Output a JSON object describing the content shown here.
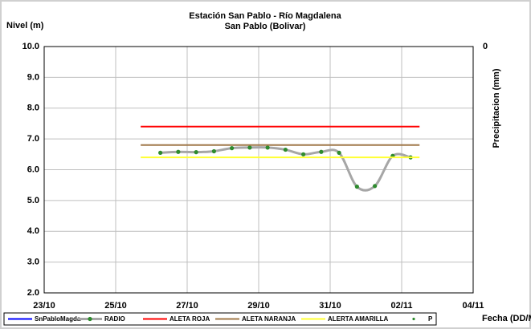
{
  "chart_data": {
    "type": "line",
    "title": "Estación San Pablo - Río Magdalena",
    "subtitle": "San Pablo (Bolivar)",
    "y_label": "Nivel (m)",
    "y2_label": "Precipitacion (mm)",
    "x_label": "Fecha (DD/MM)",
    "xlim": [
      0,
      12
    ],
    "xticks": [
      {
        "value": 0,
        "label": "23/10"
      },
      {
        "value": 2,
        "label": "25/10"
      },
      {
        "value": 4,
        "label": "27/10"
      },
      {
        "value": 6,
        "label": "29/10"
      },
      {
        "value": 8,
        "label": "31/10"
      },
      {
        "value": 10,
        "label": "02/11"
      },
      {
        "value": 12,
        "label": "04/11"
      }
    ],
    "ylim": [
      2,
      10
    ],
    "yticks": [
      {
        "value": 2,
        "label": "2.0"
      },
      {
        "value": 3,
        "label": "3.0"
      },
      {
        "value": 4,
        "label": "4.0"
      },
      {
        "value": 5,
        "label": "5.0"
      },
      {
        "value": 6,
        "label": "6.0"
      },
      {
        "value": 7,
        "label": "7.0"
      },
      {
        "value": 8,
        "label": "8.0"
      },
      {
        "value": 9,
        "label": "9.0"
      },
      {
        "value": 10,
        "label": "10.0"
      }
    ],
    "y2ticks": [
      0
    ],
    "grid": true,
    "series": [
      {
        "name": "SnPabloMagda",
        "color": "#0000ff",
        "x": [],
        "values": []
      },
      {
        "name": "RADIO",
        "color": "#a6a6a6",
        "marker_color": "#2e8b2e",
        "smooth": true,
        "x": [
          3.25,
          3.75,
          4.25,
          4.75,
          5.25,
          5.75,
          6.25,
          6.75,
          7.25,
          7.75,
          8.25,
          8.75,
          9.25,
          9.75,
          10.25
        ],
        "values": [
          6.55,
          6.58,
          6.57,
          6.6,
          6.7,
          6.72,
          6.72,
          6.65,
          6.5,
          6.58,
          6.55,
          5.45,
          5.47,
          6.45,
          6.4
        ]
      },
      {
        "name": "ALETA ROJA",
        "color": "#ff0000",
        "x": [
          2.7,
          10.5
        ],
        "values": [
          7.4,
          7.4
        ]
      },
      {
        "name": "ALETA NARANJA",
        "color": "#a0784a",
        "x": [
          2.7,
          10.5
        ],
        "values": [
          6.8,
          6.8
        ]
      },
      {
        "name": "ALERTA AMARILLA",
        "color": "#ffff33",
        "x": [
          2.7,
          10.5
        ],
        "values": [
          6.4,
          6.4
        ]
      },
      {
        "name": "P",
        "marker_color": "#2e8b2e",
        "x": [],
        "values": []
      }
    ]
  }
}
